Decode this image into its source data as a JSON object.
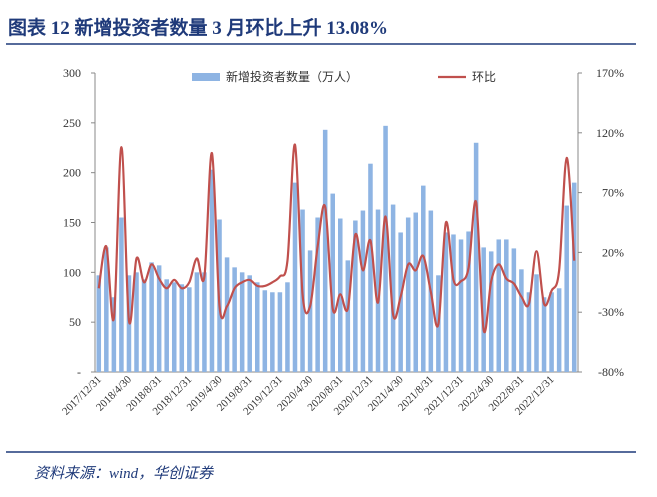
{
  "chart_data": {
    "type": "bar_line",
    "title": "图表 12  新增投资者数量 3 月环比上升 13.08%",
    "source": "资料来源：wind，华创证券",
    "categories": [
      "2017/12/31",
      null,
      null,
      null,
      "2018/4/30",
      null,
      null,
      null,
      "2018/8/31",
      null,
      null,
      null,
      "2018/12/31",
      null,
      null,
      null,
      "2019/4/30",
      null,
      null,
      null,
      "2019/8/31",
      null,
      null,
      null,
      "2019/12/31",
      null,
      null,
      null,
      "2020/4/30",
      null,
      null,
      null,
      "2020/8/31",
      null,
      null,
      null,
      "2020/12/31",
      null,
      null,
      null,
      "2021/4/30",
      null,
      null,
      null,
      "2021/8/31",
      null,
      null,
      null,
      "2021/12/31",
      null,
      null,
      null,
      "2022/4/30",
      null,
      null,
      null,
      "2022/8/31",
      null,
      null,
      null,
      "2022/12/31",
      null,
      null,
      null
    ],
    "series": [
      {
        "name": "新增投资者数量（万人）",
        "color": "#8eb4e3",
        "values": [
          97,
          125,
          75,
          155,
          97,
          100,
          93,
          110,
          107,
          93,
          90,
          88,
          85,
          100,
          100,
          203,
          153,
          115,
          105,
          100,
          97,
          90,
          82,
          80,
          80,
          90,
          190,
          163,
          122,
          155,
          243,
          179,
          154,
          112,
          152,
          162,
          209,
          163,
          247,
          168,
          140,
          155,
          160,
          187,
          162,
          97,
          140,
          138,
          133,
          141,
          230,
          125,
          121,
          133,
          133,
          124,
          103,
          80,
          98,
          75,
          80,
          84,
          167,
          190
        ]
      },
      {
        "name": "环比",
        "color": "#c0504d",
        "axis": "y2",
        "values": [
          -10,
          25,
          -35,
          108,
          -37,
          15,
          -5,
          10,
          -2,
          -10,
          -3,
          -10,
          -5,
          15,
          0,
          103,
          -25,
          -25,
          -10,
          -5,
          -3,
          -8,
          -8,
          -5,
          0,
          13,
          110,
          -15,
          -25,
          25,
          58,
          -27,
          -15,
          -27,
          35,
          5,
          30,
          -22,
          50,
          -32,
          -17,
          10,
          5,
          17,
          -13,
          -40,
          45,
          -3,
          -4,
          7,
          62,
          -45,
          -4,
          10,
          -2,
          -6,
          -17,
          -23,
          21,
          -23,
          -12,
          5,
          99,
          13.08
        ]
      }
    ],
    "ylim": [
      0,
      300
    ],
    "yticks": [
      {
        "value": 0,
        "label": "-"
      },
      50,
      100,
      150,
      200,
      250,
      300
    ],
    "y2lim": [
      -80,
      170
    ],
    "y2ticks": [
      {
        "value": -80,
        "label": "-80%"
      },
      {
        "value": -30,
        "label": "-30%"
      },
      {
        "value": 20,
        "label": "20%"
      },
      {
        "value": 70,
        "label": "70%"
      },
      {
        "value": 120,
        "label": "120%"
      },
      {
        "value": 170,
        "label": "170%"
      }
    ]
  }
}
